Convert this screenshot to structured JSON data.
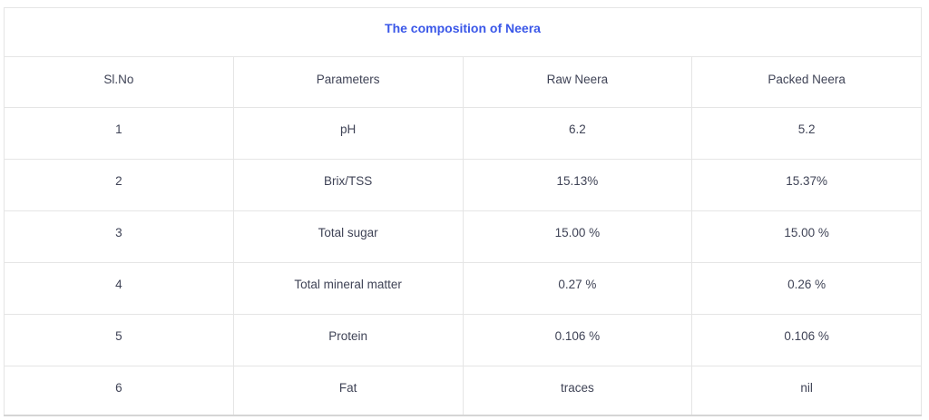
{
  "table": {
    "title": "The composition of Neera",
    "headers": [
      "Sl.No",
      "Parameters",
      "Raw Neera",
      "Packed Neera"
    ],
    "rows": [
      [
        "1",
        "pH",
        "6.2",
        "5.2"
      ],
      [
        "2",
        "Brix/TSS",
        "15.13%",
        "15.37%"
      ],
      [
        "3",
        "Total sugar",
        "15.00 %",
        "15.00 %"
      ],
      [
        "4",
        "Total mineral matter",
        "0.27 %",
        "0.26 %"
      ],
      [
        "5",
        "Protein",
        "0.106 %",
        "0.106 %"
      ],
      [
        "6",
        "Fat",
        "traces",
        "nil"
      ]
    ],
    "colors": {
      "title": "#3a57e8",
      "text": "#3f4356",
      "border": "#e5e5e5",
      "bottom_border": "#d5d5d5",
      "background": "#ffffff"
    }
  }
}
